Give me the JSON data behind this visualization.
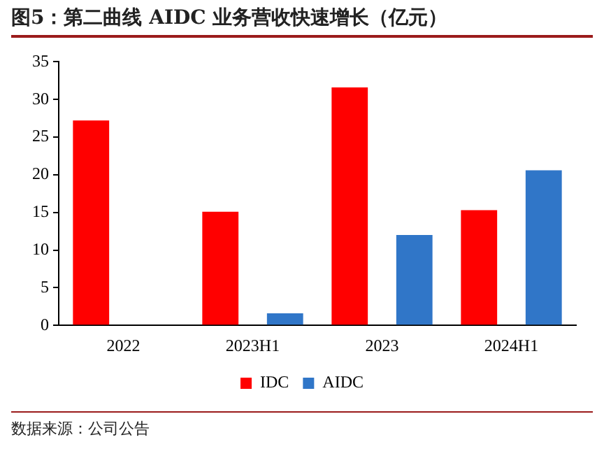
{
  "chart_data": {
    "type": "bar",
    "title": "图5：第二曲线 AIDC 业务营收快速增长（亿元）",
    "categories": [
      "2022",
      "2023H1",
      "2023",
      "2024H1"
    ],
    "series": [
      {
        "name": "IDC",
        "color": "#ff0000",
        "values": [
          27.2,
          15.1,
          31.6,
          15.3
        ]
      },
      {
        "name": "AIDC",
        "color": "#3076c8",
        "values": [
          null,
          1.6,
          12.0,
          20.6
        ]
      }
    ],
    "ylim": [
      0,
      35
    ],
    "yticks": [
      0,
      5,
      10,
      15,
      20,
      25,
      30,
      35
    ],
    "grid": false,
    "legend": "bottom",
    "annotations": [
      "数据来源：公司公告"
    ]
  }
}
